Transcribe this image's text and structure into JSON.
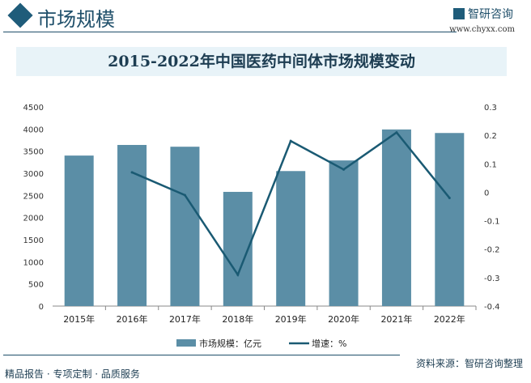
{
  "header": {
    "title": "市场规模",
    "logo_text": "智研咨询",
    "url": "www.chyxx.com"
  },
  "footer": {
    "source": "资料来源：智研咨询整理",
    "slogan": "精品报告 · 专项定制 · 品质服务"
  },
  "colors": {
    "bar": "#5b8ea6",
    "line": "#1a5a73"
  },
  "chart_data": {
    "type": "bar",
    "title": "2015-2022年中国医药中间体市场规模变动",
    "categories": [
      "2015年",
      "2016年",
      "2017年",
      "2018年",
      "2019年",
      "2020年",
      "2021年",
      "2022年"
    ],
    "series": [
      {
        "name": "市场规模：亿元",
        "type": "bar",
        "axis": "left",
        "values": [
          3400,
          3640,
          3600,
          2580,
          3050,
          3290,
          3990,
          3910
        ]
      },
      {
        "name": "增速：%",
        "type": "line",
        "axis": "right",
        "values": [
          null,
          0.07,
          -0.01,
          -0.29,
          0.18,
          0.08,
          0.21,
          -0.02
        ]
      }
    ],
    "ylim_left": [
      0,
      4500
    ],
    "yticks_left": [
      "0",
      "500",
      "1000",
      "1500",
      "2000",
      "2500",
      "3000",
      "3500",
      "4000",
      "4500"
    ],
    "ylim_right": [
      -0.4,
      0.3
    ],
    "yticks_right": [
      "-0.4",
      "-0.3",
      "-0.2",
      "-0.1",
      "0",
      "0.1",
      "0.2",
      "0.3"
    ],
    "legend": "bottom",
    "grid": false
  }
}
